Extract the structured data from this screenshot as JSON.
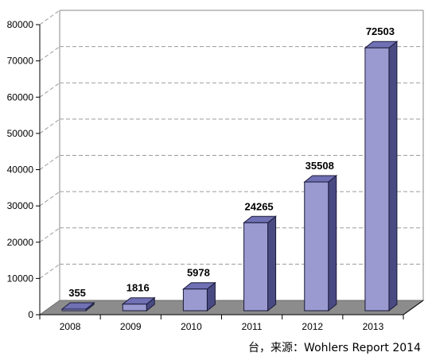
{
  "chart_data": {
    "type": "bar",
    "title": "",
    "xlabel": "",
    "ylabel": "",
    "categories": [
      "2008",
      "2009",
      "2010",
      "2011",
      "2012",
      "2013"
    ],
    "values": [
      355,
      1816,
      5978,
      24265,
      35508,
      72503
    ],
    "data_labels": [
      "355",
      "1816",
      "5978",
      "24265",
      "35508",
      "72503"
    ],
    "ylim": [
      0,
      80000
    ],
    "yticks": [
      0,
      10000,
      20000,
      30000,
      40000,
      50000,
      60000,
      70000,
      80000
    ],
    "ytick_labels": [
      "0",
      "10000",
      "20000",
      "30000",
      "40000",
      "50000",
      "60000",
      "70000",
      "80000"
    ],
    "grid": true,
    "style": "3d-bar",
    "colors": {
      "bar_front": "#9a9ad0",
      "bar_top": "#7070b4",
      "bar_side": "#4a4a82",
      "bar_stroke": "#1a1a3a",
      "floor": "#8c8c8c",
      "grid": "#9a9a9a",
      "axis": "#000000"
    }
  },
  "source_note": "台，来源：Wohlers Report 2014"
}
